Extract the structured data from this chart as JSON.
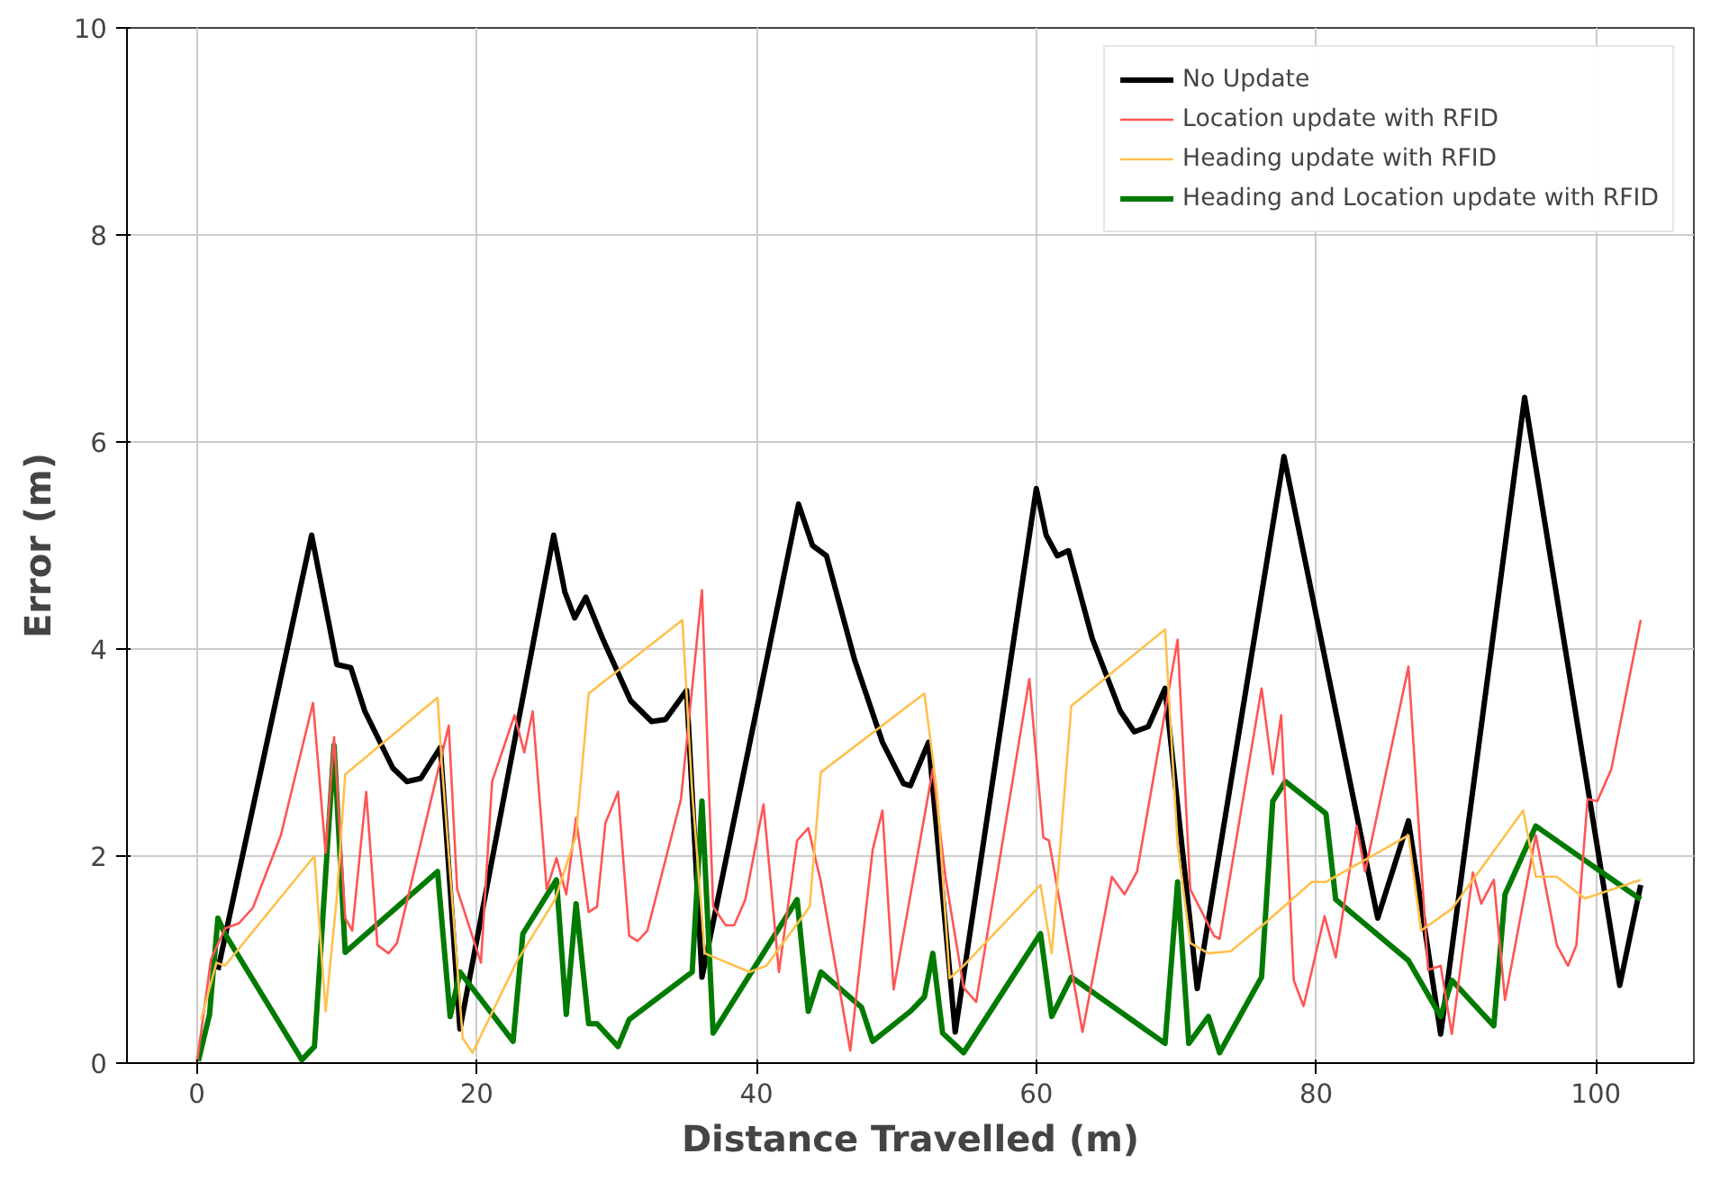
{
  "chart_data": {
    "type": "line",
    "xlabel": "Distance Travelled (m)",
    "ylabel": "Error (m)",
    "xlim": [
      -5,
      107
    ],
    "ylim": [
      0,
      10
    ],
    "xticks": [
      0,
      20,
      40,
      60,
      80,
      100
    ],
    "yticks": [
      0,
      2,
      4,
      6,
      8,
      10
    ],
    "grid": true,
    "legend": "top right",
    "marker": "none",
    "line_style": "solid",
    "series": [
      {
        "name": "No Update",
        "color": "#000000",
        "x": [
          1.5,
          8.2,
          9.5,
          10,
          11,
          12,
          14,
          15,
          16,
          17.4,
          18.8,
          25.5,
          26.3,
          27,
          27.8,
          29,
          31,
          32.5,
          33.5,
          35,
          36.1,
          43,
          44,
          45,
          47,
          49,
          50.5,
          51,
          52.3,
          54.2,
          60,
          60.7,
          61.5,
          62.3,
          64,
          66,
          67,
          68,
          69.2,
          71.5,
          77.7,
          84.4,
          86.6,
          88.9,
          94.9,
          101.7,
          103.2
        ],
        "values": [
          0.9,
          5.1,
          4.2,
          3.85,
          3.82,
          3.4,
          2.85,
          2.72,
          2.75,
          3.05,
          0.33,
          5.1,
          4.55,
          4.3,
          4.5,
          4.1,
          3.5,
          3.3,
          3.32,
          3.6,
          0.83,
          5.4,
          5.0,
          4.9,
          3.9,
          3.1,
          2.7,
          2.68,
          3.1,
          0.3,
          5.55,
          5.1,
          4.9,
          4.95,
          4.1,
          3.4,
          3.2,
          3.25,
          3.62,
          0.72,
          5.86,
          1.4,
          2.34,
          0.28,
          6.43,
          0.75,
          1.72
        ]
      },
      {
        "name": "Location update with RFID",
        "color": "#ff5555",
        "x": [
          0,
          1,
          2,
          3,
          4,
          6,
          8.3,
          9.2,
          9.8,
          10.6,
          11.1,
          12.1,
          12.9,
          13.7,
          14.3,
          18.0,
          18.6,
          20.3,
          21.1,
          22.7,
          23.4,
          24.0,
          25.0,
          25.7,
          26.4,
          27.1,
          28.0,
          28.6,
          29.2,
          30.1,
          30.9,
          31.5,
          32.2,
          34.6,
          36.1,
          36.9,
          37.8,
          38.4,
          39.2,
          40.5,
          41.6,
          42.9,
          43.7,
          44.6,
          46.7,
          48.3,
          49.0,
          49.8,
          52.6,
          53.5,
          54.8,
          55.7,
          59.5,
          60.5,
          60.9,
          63.3,
          65.4,
          66.3,
          67.2,
          70.1,
          71.0,
          72.7,
          73.1,
          76.1,
          76.9,
          77.5,
          78.4,
          79.1,
          80.6,
          81.4,
          82.9,
          83.5,
          86.6,
          88.0,
          88.9,
          89.7,
          91.2,
          91.8,
          92.7,
          93.5,
          95.7,
          97.2,
          98.0,
          98.6,
          99.4,
          100.1,
          101.1,
          103.2
        ],
        "values": [
          0,
          1.0,
          1.3,
          1.35,
          1.5,
          2.2,
          3.48,
          2.03,
          3.15,
          1.4,
          1.28,
          2.62,
          1.14,
          1.06,
          1.16,
          3.26,
          1.68,
          0.97,
          2.72,
          3.36,
          3.0,
          3.4,
          1.68,
          1.98,
          1.63,
          2.37,
          1.46,
          1.51,
          2.32,
          2.62,
          1.23,
          1.18,
          1.28,
          2.55,
          4.57,
          1.51,
          1.33,
          1.33,
          1.58,
          2.5,
          0.88,
          2.15,
          2.27,
          1.75,
          0.12,
          2.06,
          2.44,
          0.71,
          2.84,
          1.8,
          0.73,
          0.59,
          3.71,
          2.18,
          2.15,
          0.3,
          1.8,
          1.63,
          1.85,
          4.09,
          1.68,
          1.23,
          1.2,
          3.62,
          2.79,
          3.36,
          0.8,
          0.55,
          1.42,
          1.02,
          2.29,
          1.85,
          3.83,
          0.9,
          0.94,
          0.28,
          1.84,
          1.54,
          1.77,
          0.61,
          2.2,
          1.14,
          0.94,
          1.14,
          2.55,
          2.53,
          2.84,
          4.28
        ]
      },
      {
        "name": "Heading update with RFID",
        "color": "#ffc04d",
        "x": [
          0.3,
          1.4,
          2.0,
          8.4,
          9.2,
          10.0,
          10.6,
          17.2,
          17.5,
          19.0,
          19.7,
          22.9,
          25.6,
          27.1,
          28.0,
          34.7,
          35.4,
          36.3,
          39.5,
          40.7,
          43.8,
          44.6,
          52.0,
          52.9,
          53.8,
          54.8,
          60.3,
          61.1,
          62.5,
          69.2,
          70.1,
          71.0,
          72.3,
          73.9,
          76.5,
          79.7,
          80.7,
          86.6,
          87.5,
          89.7,
          94.8,
          95.7,
          97.2,
          99.2,
          103.2
        ],
        "values": [
          0.42,
          0.97,
          0.94,
          2.0,
          0.5,
          1.6,
          2.79,
          3.53,
          2.9,
          0.24,
          0.1,
          0.99,
          1.58,
          2.2,
          3.57,
          4.28,
          2.62,
          1.06,
          0.88,
          0.94,
          1.51,
          2.81,
          3.57,
          2.62,
          0.82,
          0.94,
          1.72,
          1.06,
          3.45,
          4.19,
          2.1,
          1.16,
          1.06,
          1.08,
          1.37,
          1.75,
          1.75,
          2.2,
          1.28,
          1.49,
          2.44,
          1.8,
          1.8,
          1.59,
          1.77
        ]
      },
      {
        "name": "Heading and Location update with RFID",
        "color": "#007a00",
        "x": [
          0.1,
          0.9,
          1.5,
          2.0,
          7.5,
          8.4,
          9.8,
          10.6,
          17.2,
          18.1,
          18.8,
          22.6,
          23.3,
          25.7,
          26.4,
          27.1,
          28.0,
          28.6,
          30.1,
          30.9,
          35.4,
          36.1,
          36.9,
          42.9,
          43.7,
          44.6,
          47.5,
          48.3,
          51.0,
          52.0,
          52.6,
          53.3,
          54.8,
          60.3,
          61.1,
          62.5,
          69.2,
          70.1,
          70.9,
          72.3,
          73.1,
          76.1,
          76.9,
          77.8,
          80.7,
          81.4,
          86.6,
          88.9,
          89.7,
          92.7,
          93.5,
          95.7,
          103.2
        ],
        "values": [
          0.02,
          0.47,
          1.4,
          1.25,
          0.03,
          0.16,
          3.07,
          1.07,
          1.85,
          0.45,
          0.88,
          0.21,
          1.25,
          1.77,
          0.47,
          1.54,
          0.38,
          0.38,
          0.16,
          0.42,
          0.88,
          2.53,
          0.29,
          1.58,
          0.5,
          0.88,
          0.54,
          0.21,
          0.5,
          0.64,
          1.06,
          0.29,
          0.1,
          1.25,
          0.45,
          0.83,
          0.19,
          1.75,
          0.19,
          0.45,
          0.1,
          0.83,
          2.53,
          2.72,
          2.41,
          1.58,
          0.99,
          0.45,
          0.8,
          0.36,
          1.63,
          2.29,
          1.58
        ]
      }
    ]
  }
}
